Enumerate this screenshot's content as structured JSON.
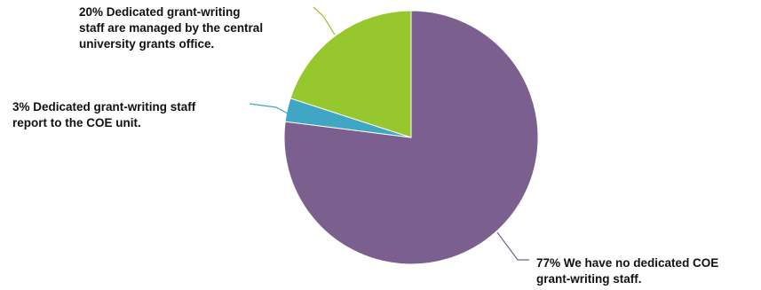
{
  "chart_data": {
    "type": "pie",
    "title": "",
    "slices": [
      {
        "label_lines": [
          "77% We have no dedicated COE",
          "grant-writing staff."
        ],
        "value": 77,
        "color": "#7b5f8f"
      },
      {
        "label_lines": [
          "3% Dedicated grant-writing staff",
          "report to the COE unit."
        ],
        "value": 3,
        "color": "#3fa7c3"
      },
      {
        "label_lines": [
          "20% Dedicated grant-writing",
          "staff are managed by the central",
          "university grants office."
        ],
        "value": 20,
        "color": "#96c72c"
      }
    ],
    "legend": "none",
    "data_labels": "outside with leader lines"
  }
}
